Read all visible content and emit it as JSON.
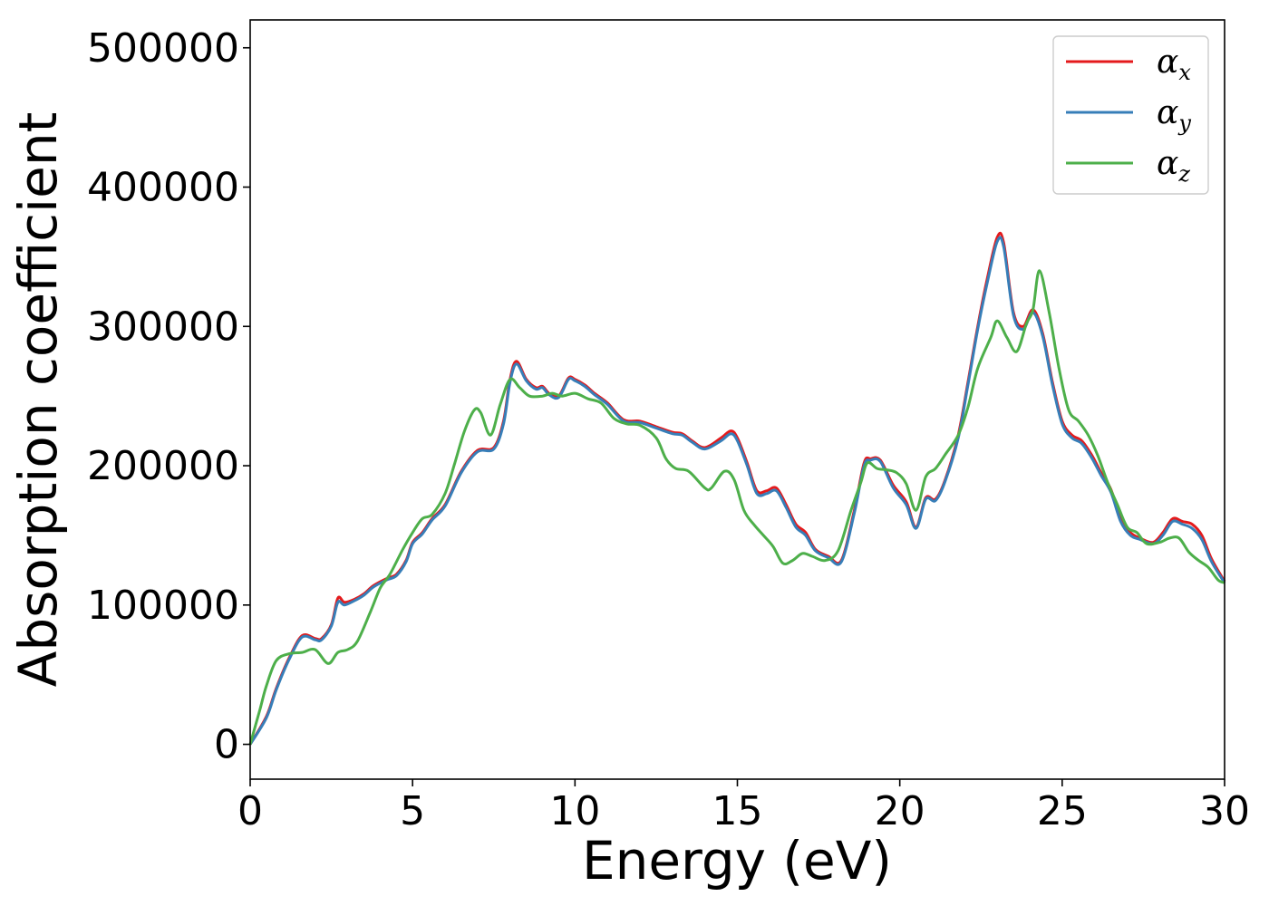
{
  "chart_data": {
    "type": "line",
    "title": "",
    "xlabel": "Energy (eV)",
    "ylabel": "Absorption coefficient",
    "xlim": [
      0,
      30
    ],
    "ylim": [
      -25000,
      520000
    ],
    "xticks": [
      0,
      5,
      10,
      15,
      20,
      25,
      30
    ],
    "xtick_labels": [
      "0",
      "5",
      "10",
      "15",
      "20",
      "25",
      "30"
    ],
    "yticks": [
      0,
      100000,
      200000,
      300000,
      400000,
      500000
    ],
    "ytick_labels": [
      "0",
      "100000",
      "200000",
      "300000",
      "400000",
      "500000"
    ],
    "grid": false,
    "legend_position": "top-right",
    "series": [
      {
        "name": "αx",
        "legend_symbol": "α",
        "legend_sub": "x",
        "color": "#e41a1c",
        "x": [
          0,
          0.5,
          0.8,
          1.2,
          1.6,
          2.0,
          2.2,
          2.5,
          2.7,
          2.9,
          3.2,
          3.5,
          3.8,
          4.2,
          4.5,
          4.8,
          5.0,
          5.3,
          5.6,
          6.0,
          6.5,
          7.0,
          7.5,
          7.8,
          8.0,
          8.2,
          8.5,
          8.8,
          9.0,
          9.2,
          9.5,
          9.8,
          10.0,
          10.3,
          10.6,
          11.0,
          11.5,
          12.0,
          12.5,
          13.0,
          13.3,
          13.6,
          14.0,
          14.5,
          14.8,
          15.0,
          15.3,
          15.6,
          15.9,
          16.2,
          16.5,
          16.8,
          17.1,
          17.4,
          17.8,
          18.2,
          18.6,
          18.9,
          19.1,
          19.4,
          19.8,
          20.2,
          20.5,
          20.8,
          21.1,
          21.4,
          21.8,
          22.1,
          22.4,
          22.7,
          23.0,
          23.2,
          23.5,
          23.8,
          24.1,
          24.4,
          24.7,
          25.0,
          25.3,
          25.6,
          25.9,
          26.2,
          26.5,
          26.8,
          27.1,
          27.4,
          27.8,
          28.1,
          28.4,
          28.7,
          29.0,
          29.3,
          29.6,
          30.0
        ],
        "y": [
          0,
          20000,
          40000,
          62000,
          78000,
          76000,
          76000,
          86000,
          105000,
          102000,
          104000,
          108000,
          114000,
          119000,
          122000,
          132000,
          145000,
          152000,
          162000,
          172000,
          196000,
          211000,
          213000,
          232000,
          262000,
          275000,
          262000,
          256000,
          257000,
          252000,
          250000,
          263000,
          262000,
          258000,
          252000,
          245000,
          233000,
          232000,
          228000,
          224000,
          223000,
          218000,
          213000,
          220000,
          225000,
          220000,
          202000,
          182000,
          182000,
          184000,
          172000,
          158000,
          152000,
          140000,
          135000,
          132000,
          168000,
          202000,
          205000,
          204000,
          186000,
          174000,
          156000,
          177000,
          176000,
          190000,
          222000,
          260000,
          300000,
          335000,
          364000,
          360000,
          310000,
          300000,
          312000,
          295000,
          260000,
          232000,
          222000,
          218000,
          208000,
          195000,
          183000,
          162000,
          152000,
          148000,
          145000,
          152000,
          162000,
          160000,
          158000,
          150000,
          133000,
          117000
        ]
      },
      {
        "name": "αy",
        "legend_symbol": "α",
        "legend_sub": "y",
        "color": "#377eb8",
        "x": [
          0,
          0.5,
          0.8,
          1.2,
          1.6,
          2.0,
          2.2,
          2.5,
          2.7,
          2.9,
          3.2,
          3.5,
          3.8,
          4.2,
          4.5,
          4.8,
          5.0,
          5.3,
          5.6,
          6.0,
          6.5,
          7.0,
          7.5,
          7.8,
          8.0,
          8.2,
          8.5,
          8.8,
          9.0,
          9.2,
          9.5,
          9.8,
          10.0,
          10.3,
          10.6,
          11.0,
          11.5,
          12.0,
          12.5,
          13.0,
          13.3,
          13.6,
          14.0,
          14.5,
          14.8,
          15.0,
          15.3,
          15.6,
          15.9,
          16.2,
          16.5,
          16.8,
          17.1,
          17.4,
          17.8,
          18.2,
          18.6,
          18.9,
          19.1,
          19.4,
          19.8,
          20.2,
          20.5,
          20.8,
          21.1,
          21.4,
          21.8,
          22.1,
          22.4,
          22.7,
          23.0,
          23.2,
          23.5,
          23.8,
          24.1,
          24.4,
          24.7,
          25.0,
          25.3,
          25.6,
          25.9,
          26.2,
          26.5,
          26.8,
          27.1,
          27.4,
          27.8,
          28.1,
          28.4,
          28.7,
          29.0,
          29.3,
          29.6,
          30.0
        ],
        "y": [
          0,
          19000,
          39000,
          61000,
          77000,
          75000,
          75000,
          85000,
          102000,
          100000,
          103000,
          107000,
          113000,
          118000,
          121000,
          131000,
          144000,
          151000,
          161000,
          171000,
          195000,
          210000,
          212000,
          230000,
          260000,
          273000,
          261000,
          255000,
          256000,
          251000,
          249000,
          262000,
          261000,
          257000,
          251000,
          244000,
          232000,
          231000,
          227000,
          223000,
          222000,
          217000,
          212000,
          218000,
          223000,
          218000,
          200000,
          180000,
          180000,
          182000,
          170000,
          156000,
          150000,
          139000,
          134000,
          131000,
          166000,
          200000,
          204000,
          203000,
          184000,
          172000,
          155000,
          176000,
          175000,
          189000,
          220000,
          258000,
          298000,
          332000,
          361000,
          357000,
          308000,
          298000,
          310000,
          293000,
          258000,
          230000,
          220000,
          216000,
          206000,
          193000,
          181000,
          160000,
          150000,
          147000,
          144000,
          150000,
          160000,
          158000,
          155000,
          147000,
          131000,
          116000
        ]
      },
      {
        "name": "αz",
        "legend_symbol": "α",
        "legend_sub": "z",
        "color": "#4daf4a",
        "x": [
          0,
          0.3,
          0.5,
          0.8,
          1.2,
          1.6,
          2.0,
          2.4,
          2.7,
          3.0,
          3.3,
          3.7,
          4.0,
          4.3,
          4.7,
          5.0,
          5.3,
          5.6,
          6.0,
          6.3,
          6.6,
          6.9,
          7.1,
          7.4,
          7.7,
          8.0,
          8.3,
          8.6,
          9.0,
          9.3,
          9.6,
          10.0,
          10.4,
          10.8,
          11.2,
          11.6,
          12.0,
          12.5,
          12.8,
          13.1,
          13.5,
          14.0,
          14.2,
          14.6,
          14.9,
          15.2,
          15.5,
          15.8,
          16.1,
          16.4,
          16.7,
          17.0,
          17.3,
          17.7,
          18.1,
          18.5,
          18.8,
          19.0,
          19.3,
          19.6,
          19.9,
          20.2,
          20.5,
          20.8,
          21.1,
          21.4,
          21.8,
          22.1,
          22.4,
          22.8,
          23.0,
          23.3,
          23.6,
          23.9,
          24.1,
          24.3,
          24.6,
          24.9,
          25.2,
          25.5,
          25.8,
          26.1,
          26.4,
          26.7,
          27.0,
          27.3,
          27.6,
          28.0,
          28.3,
          28.6,
          28.9,
          29.2,
          29.5,
          29.8,
          30.0
        ],
        "y": [
          0,
          25000,
          42000,
          60000,
          65000,
          66000,
          68000,
          58000,
          66000,
          68000,
          74000,
          95000,
          112000,
          122000,
          140000,
          152000,
          162000,
          165000,
          180000,
          202000,
          225000,
          240000,
          238000,
          222000,
          244000,
          262000,
          256000,
          250000,
          250000,
          252000,
          250000,
          252000,
          248000,
          245000,
          234000,
          230000,
          229000,
          220000,
          205000,
          198000,
          196000,
          184000,
          184000,
          196000,
          190000,
          168000,
          158000,
          150000,
          142000,
          130000,
          132000,
          137000,
          135000,
          132000,
          139000,
          168000,
          188000,
          202000,
          198000,
          197000,
          195000,
          187000,
          168000,
          192000,
          198000,
          208000,
          222000,
          242000,
          270000,
          292000,
          304000,
          292000,
          282000,
          302000,
          312000,
          340000,
          310000,
          270000,
          240000,
          232000,
          222000,
          207000,
          188000,
          172000,
          156000,
          152000,
          144000,
          145000,
          148000,
          148000,
          138000,
          132000,
          127000,
          118000,
          116000
        ]
      }
    ]
  }
}
